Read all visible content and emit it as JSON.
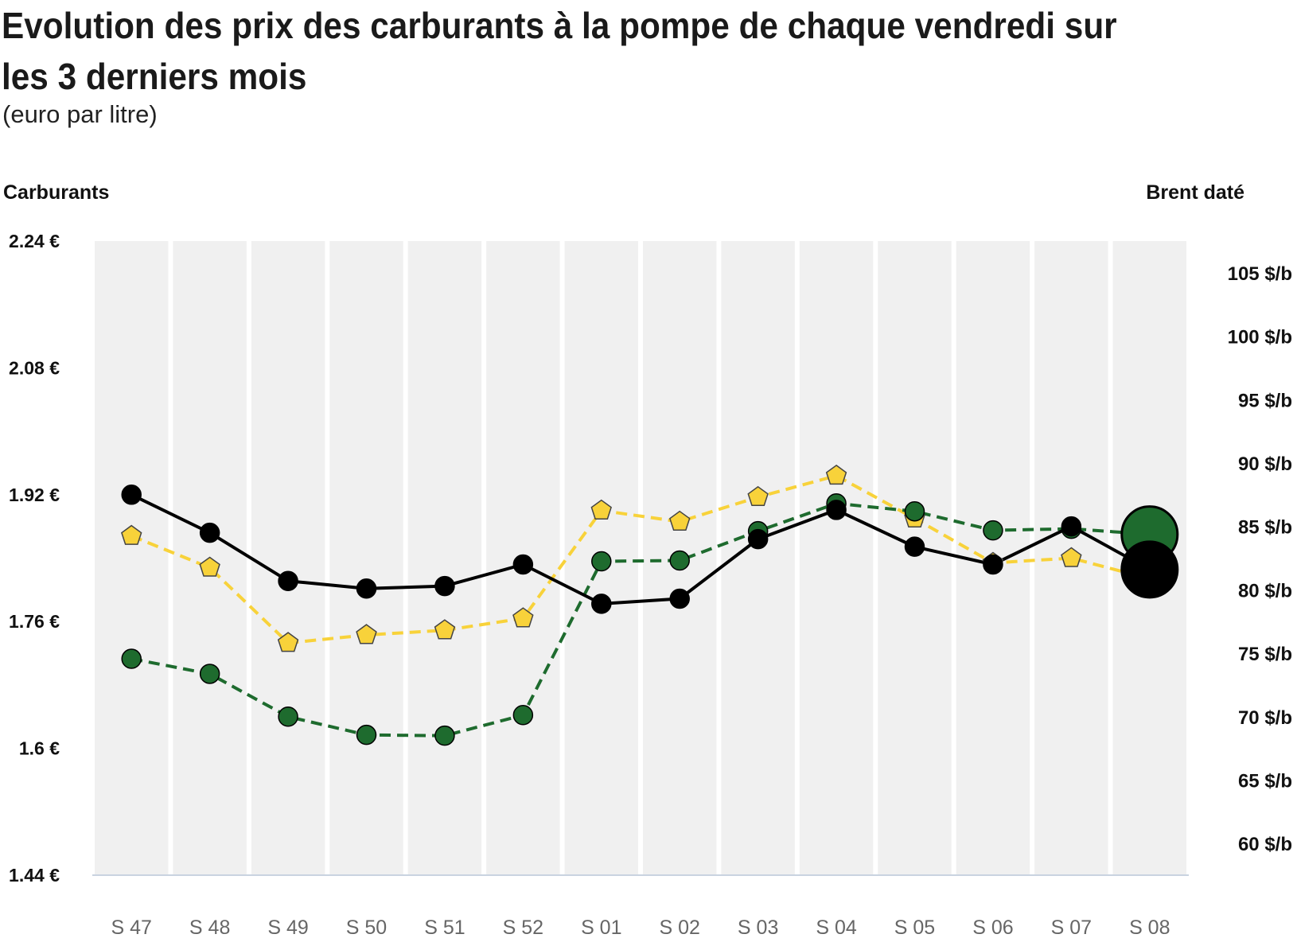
{
  "header": {
    "title": "Evolution des prix des carburants à la pompe de chaque vendredi sur les 3 derniers mois",
    "subtitle": "(euro par litre)"
  },
  "axes": {
    "left_title": "Carburants",
    "right_title": "Brent daté",
    "left_ticks": [
      "2.24 €",
      "2.08 €",
      "1.92 €",
      "1.76 €",
      "1.6 €",
      "1.44 €"
    ],
    "right_ticks": [
      "105 $/b",
      "100 $/b",
      "95 $/b",
      "90 $/b",
      "85 $/b",
      "80 $/b",
      "75 $/b",
      "70 $/b",
      "65 $/b",
      "60 $/b"
    ]
  },
  "chart_data": {
    "type": "line",
    "categories": [
      "S 47",
      "S 48",
      "S 49",
      "S 50",
      "S 51",
      "S 52",
      "S 01",
      "S 02",
      "S 03",
      "S 04",
      "S 05",
      "S 06",
      "S 07",
      "S 08"
    ],
    "left_ylim": [
      1.44,
      2.24
    ],
    "right_ylim": [
      57.5,
      107.5
    ],
    "left_ticks": [
      2.24,
      2.08,
      1.92,
      1.76,
      1.6,
      1.44
    ],
    "right_ticks": [
      105,
      100,
      95,
      90,
      85,
      80,
      75,
      70,
      65,
      60
    ],
    "grid": "vertical column bands",
    "legend": "none",
    "series": [
      {
        "axis": "left",
        "style": "dashed",
        "marker": "pentagon",
        "color": "#f8d23a",
        "values": [
          1.868,
          1.828,
          1.733,
          1.743,
          1.749,
          1.764,
          1.9,
          1.886,
          1.917,
          1.944,
          1.89,
          1.834,
          1.84,
          1.814
        ]
      },
      {
        "axis": "left",
        "style": "dashed",
        "marker": "circle",
        "color": "#1e6b2e",
        "values": [
          1.713,
          1.694,
          1.64,
          1.617,
          1.616,
          1.642,
          1.836,
          1.837,
          1.874,
          1.909,
          1.899,
          1.875,
          1.877,
          1.87
        ]
      },
      {
        "axis": "right",
        "style": "solid",
        "marker": "circle",
        "color": "#000000",
        "values": [
          87.5,
          84.5,
          80.7,
          80.1,
          80.3,
          82.0,
          78.9,
          79.3,
          84.0,
          86.3,
          83.4,
          82.0,
          85.0,
          81.6
        ]
      }
    ]
  }
}
